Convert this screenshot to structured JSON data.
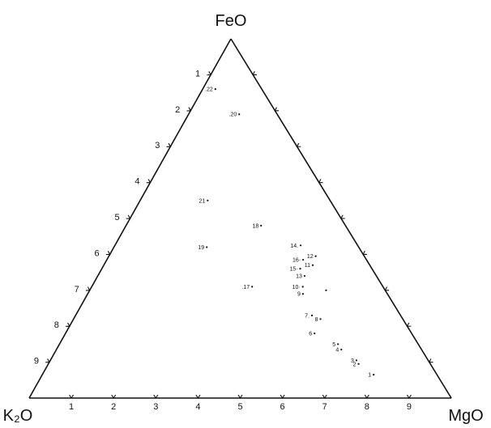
{
  "diagram": {
    "type": "ternary",
    "apices": {
      "top": "FeO",
      "left": "K₂O",
      "right": "MgO"
    },
    "base_ticks": [
      "1",
      "2",
      "3",
      "4",
      "5",
      "6",
      "7",
      "8",
      "9"
    ],
    "left_ticks": [
      "1",
      "2",
      "3",
      "4",
      "5",
      "6",
      "7",
      "8",
      "9"
    ],
    "points": [
      {
        "label": ".22",
        "feo": 0.86,
        "mgo": 0.03
      },
      {
        "label": ".20",
        "feo": 0.79,
        "mgo": 0.12
      },
      {
        "label": "21",
        "feo": 0.55,
        "mgo": 0.16
      },
      {
        "label": "19",
        "feo": 0.42,
        "mgo": 0.22
      },
      {
        "label": "18",
        "feo": 0.48,
        "mgo": 0.32
      },
      {
        "label": "14.",
        "feo": 0.425,
        "mgo": 0.44
      },
      {
        "label": "12",
        "feo": 0.395,
        "mgo": 0.49
      },
      {
        "label": "16·",
        "feo": 0.385,
        "mgo": 0.465
      },
      {
        "label": "11",
        "feo": 0.37,
        "mgo": 0.495
      },
      {
        "label": "15·",
        "feo": 0.36,
        "mgo": 0.47
      },
      {
        "label": "13",
        "feo": 0.34,
        "mgo": 0.49
      },
      {
        "label": ".17",
        "feo": 0.31,
        "mgo": 0.38
      },
      {
        "label": "10·",
        "feo": 0.31,
        "mgo": 0.5
      },
      {
        "label": "9",
        "feo": 0.29,
        "mgo": 0.51
      },
      {
        "label": "7.",
        "feo": 0.23,
        "mgo": 0.56
      },
      {
        "label": "8",
        "feo": 0.22,
        "mgo": 0.585
      },
      {
        "label": "6",
        "feo": 0.18,
        "mgo": 0.59
      },
      {
        "label": "5",
        "feo": 0.15,
        "mgo": 0.66
      },
      {
        "label": "4",
        "feo": 0.135,
        "mgo": 0.675
      },
      {
        "label": "3",
        "feo": 0.105,
        "mgo": 0.725
      },
      {
        "label": "2",
        "feo": 0.095,
        "mgo": 0.735
      },
      {
        "label": "1",
        "feo": 0.065,
        "mgo": 0.785
      }
    ],
    "extra_dots": [
      {
        "feo": 0.3,
        "mgo": 0.56
      }
    ]
  }
}
